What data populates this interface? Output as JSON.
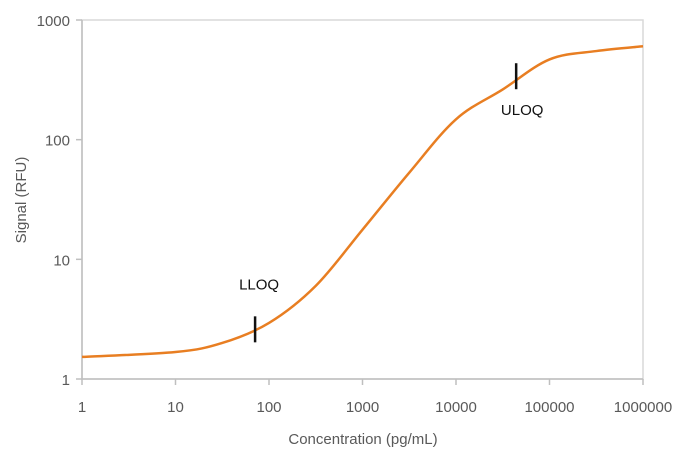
{
  "chart_data": {
    "type": "line",
    "title": "",
    "xlabel": "Concentration (pg/mL)",
    "ylabel": "Signal (RFU)",
    "x_scale": "log",
    "y_scale": "log",
    "xlim": [
      1,
      1000000
    ],
    "ylim": [
      1,
      1000
    ],
    "x_ticks": [
      "1",
      "10",
      "100",
      "1000",
      "10000",
      "100000",
      "1000000"
    ],
    "y_ticks": [
      "1",
      "10",
      "100",
      "1000"
    ],
    "grid": false,
    "series": [
      {
        "color": "#E87E22",
        "x": [
          1,
          10,
          31.6,
          100,
          316,
          1000,
          3162,
          10000,
          31623,
          100000,
          316228,
          1000000
        ],
        "y": [
          1.53,
          1.68,
          2.0,
          2.94,
          6.0,
          17.7,
          53,
          148,
          263,
          468,
          550,
          603
        ]
      }
    ],
    "annotations": [
      {
        "label": "LLOQ",
        "x": 71,
        "y": 2.6
      },
      {
        "label": "ULOQ",
        "x": 44000,
        "y": 339
      }
    ]
  }
}
